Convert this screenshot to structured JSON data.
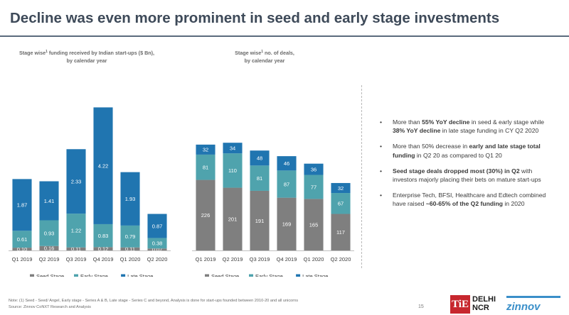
{
  "slide": {
    "title": "Decline was even more prominent in seed and early stage investments"
  },
  "colors": {
    "seed": "#7f7f7f",
    "early": "#4fa3ad",
    "late": "#2075b0",
    "title": "#3e4a59"
  },
  "chart_data": [
    {
      "type": "bar",
      "stacked": true,
      "title_line1": "Stage wise",
      "title_sup": "1",
      "title_line1_rest": " funding received by Indian start-ups ($ Bn),",
      "title_line2": "by calendar year",
      "categories": [
        "Q1 2019",
        "Q2 2019",
        "Q3 2019",
        "Q4 2019",
        "Q1 2020",
        "Q2 2020"
      ],
      "series": [
        {
          "name": "Seed Stage",
          "values": [
            0.1,
            0.16,
            0.11,
            0.12,
            0.11,
            0.07
          ],
          "labels": [
            "0.10",
            "0.16",
            "0.11",
            "0.12",
            "0.11",
            "0.07"
          ]
        },
        {
          "name": "Early Stage",
          "values": [
            0.61,
            0.93,
            1.22,
            0.83,
            0.79,
            0.38
          ],
          "labels": [
            "0.61",
            "0.93",
            "1.22",
            "0.83",
            "0.79",
            "0.38"
          ]
        },
        {
          "name": "Late Stage",
          "values": [
            1.87,
            1.41,
            2.33,
            4.22,
            1.93,
            0.87
          ],
          "labels": [
            "1.87",
            "1.41",
            "2.33",
            "4.22",
            "1.93",
            "0.87"
          ]
        }
      ],
      "legend_position": "bottom"
    },
    {
      "type": "bar",
      "stacked": true,
      "title_line1": "Stage wise",
      "title_sup": "1",
      "title_line1_rest": " no. of deals,",
      "title_line2": "by calendar year",
      "categories": [
        "Q1 2019",
        "Q2 2019",
        "Q3 2019",
        "Q4 2019",
        "Q1 2020",
        "Q2 2020"
      ],
      "series": [
        {
          "name": "Seed Stage",
          "values": [
            226,
            201,
            191,
            169,
            165,
            117
          ],
          "labels": [
            "226",
            "201",
            "191",
            "169",
            "165",
            "117"
          ]
        },
        {
          "name": "Early Stage",
          "values": [
            81,
            110,
            81,
            87,
            77,
            67
          ],
          "labels": [
            "81",
            "110",
            "81",
            "87",
            "77",
            "67"
          ]
        },
        {
          "name": "Late Stage",
          "values": [
            32,
            34,
            48,
            46,
            36,
            32
          ],
          "labels": [
            "32",
            "34",
            "48",
            "46",
            "36",
            "32"
          ]
        }
      ],
      "legend_position": "bottom"
    }
  ],
  "bullets": [
    [
      {
        "t": "More than ",
        "b": false
      },
      {
        "t": "55% YoY decline",
        "b": true
      },
      {
        "t": " in seed & early stage while ",
        "b": false
      },
      {
        "t": "38% YoY decline",
        "b": true
      },
      {
        "t": " in late stage funding in CY Q2 2020",
        "b": false
      }
    ],
    [
      {
        "t": "More than 50% decrease in ",
        "b": false
      },
      {
        "t": "early and late stage total funding",
        "b": true
      },
      {
        "t": " in Q2 20 as compared to Q1 20",
        "b": false
      }
    ],
    [
      {
        "t": "Seed stage deals dropped most (30%) in Q2",
        "b": true
      },
      {
        "t": " with investors majorly placing their bets on mature start-ups",
        "b": false
      }
    ],
    [
      {
        "t": "Enterprise Tech, BFSI, Healthcare and Edtech combined have raised ",
        "b": false
      },
      {
        "t": "~60-65% of the Q2 funding",
        "b": true
      },
      {
        "t": " in 2020",
        "b": false
      }
    ]
  ],
  "bullet_symbol": "•",
  "footnote": {
    "line1": "Note: (1) Seed - Seed/ Angel, Early stage - Series A & B, Late stage - Series C and beyond, Analysis is done for start-ups founded between 2010-20 and all unicorns",
    "line2": "Source: Zinnov CoNXT Research and Analysis"
  },
  "page_number": "15",
  "logos": {
    "te": "TiE",
    "delhi_line1": "DELHI",
    "delhi_line2": "NCR",
    "zinnov": "zinnov"
  }
}
